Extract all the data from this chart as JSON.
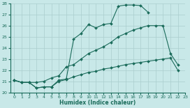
{
  "xlabel": "Humidex (Indice chaleur)",
  "color": "#1a6b5a",
  "bg_color": "#c8e8e8",
  "grid_color": "#aacece",
  "ylim": [
    20,
    28
  ],
  "xlim": [
    -0.5,
    23
  ],
  "s1_x": [
    0,
    1,
    2,
    3,
    4,
    5,
    6,
    7,
    8,
    9,
    10,
    11,
    12,
    13,
    14,
    15,
    16,
    17,
    18
  ],
  "s1_y": [
    21.1,
    20.9,
    20.9,
    20.4,
    20.5,
    20.5,
    21.1,
    21.2,
    24.8,
    25.3,
    26.1,
    25.8,
    26.1,
    26.2,
    27.75,
    27.85,
    27.85,
    27.8,
    27.2
  ],
  "s2_x": [
    0,
    1,
    2,
    3,
    4,
    5,
    6,
    7,
    8,
    9,
    10,
    11,
    12,
    13,
    14,
    15,
    16,
    17,
    18,
    19,
    20,
    21,
    22
  ],
  "s2_y": [
    21.1,
    20.9,
    20.9,
    20.9,
    21.0,
    21.3,
    21.5,
    22.3,
    22.5,
    23.0,
    23.5,
    23.8,
    24.1,
    24.5,
    25.0,
    25.3,
    25.6,
    25.8,
    26.0,
    26.0,
    26.0,
    23.5,
    22.5
  ],
  "s3_x": [
    0,
    1,
    2,
    3,
    4,
    5,
    6,
    7,
    8,
    9,
    10,
    11,
    12,
    13,
    14,
    15,
    16,
    17,
    18,
    19,
    20,
    21,
    22
  ],
  "s3_y": [
    21.1,
    20.9,
    20.9,
    20.4,
    20.5,
    20.5,
    21.0,
    21.15,
    21.4,
    21.6,
    21.8,
    21.9,
    22.1,
    22.2,
    22.35,
    22.5,
    22.6,
    22.7,
    22.8,
    22.9,
    23.0,
    23.1,
    22.0
  ]
}
